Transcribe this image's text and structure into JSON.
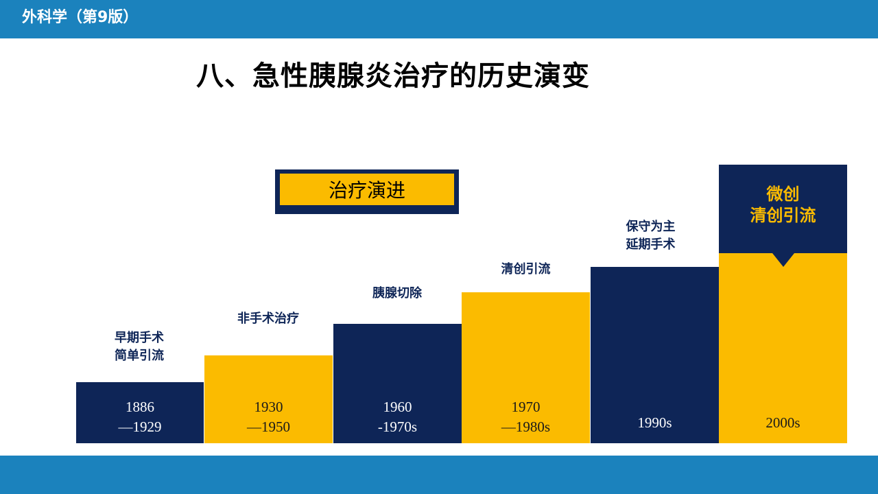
{
  "header": {
    "title": "外科学（第9版）"
  },
  "slide": {
    "title": "八、急性胰腺炎治疗的历史演变"
  },
  "legend": {
    "label": "治疗演进"
  },
  "stages": [
    {
      "period_line1": "1886",
      "period_line2": "—1929",
      "label_line1": "早期手术",
      "label_line2": "简单引流"
    },
    {
      "period_line1": "1930",
      "period_line2": "—1950",
      "label_line1": "非手术治疗",
      "label_line2": ""
    },
    {
      "period_line1": "1960",
      "period_line2": "-1970s",
      "label_line1": "胰腺切除",
      "label_line2": ""
    },
    {
      "period_line1": "1970",
      "period_line2": "—1980s",
      "label_line1": "清创引流",
      "label_line2": ""
    },
    {
      "period_line1": "1990s",
      "period_line2": "",
      "label_line1": "保守为主",
      "label_line2": "延期手术"
    },
    {
      "period_line1": "2000s",
      "period_line2": "",
      "label_line1": "微创",
      "label_line2": "清创引流"
    }
  ],
  "colors": {
    "navy": "#0e2557",
    "gold": "#fbbb00",
    "band": "#1b82bd"
  }
}
